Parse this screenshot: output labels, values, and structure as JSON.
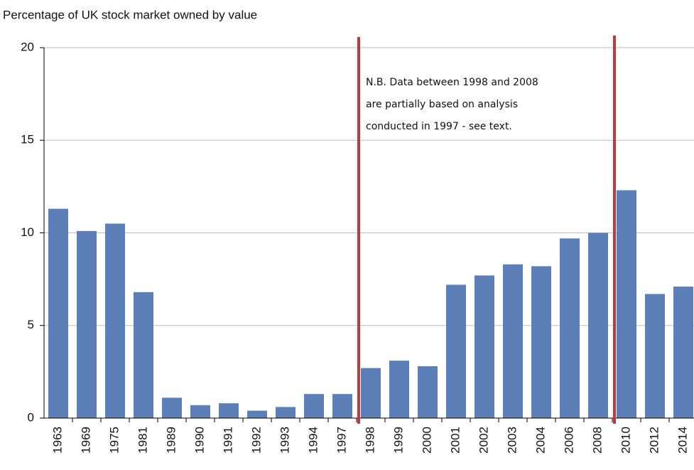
{
  "chart_data": {
    "type": "bar",
    "title": "Percentage of UK stock market owned by value",
    "categories": [
      "1963",
      "1969",
      "1975",
      "1981",
      "1989",
      "1990",
      "1991",
      "1992",
      "1993",
      "1994",
      "1997",
      "1998",
      "1999",
      "2000",
      "2001",
      "2002",
      "2003",
      "2004",
      "2006",
      "2008",
      "2010",
      "2012",
      "2014"
    ],
    "values": [
      11.3,
      10.1,
      10.5,
      6.8,
      1.1,
      0.7,
      0.8,
      0.4,
      0.6,
      1.3,
      1.3,
      2.7,
      3.1,
      2.8,
      7.2,
      7.7,
      8.3,
      8.2,
      9.7,
      10.0,
      12.3,
      6.7,
      7.1
    ],
    "color": "#5b7fb6",
    "ylim": [
      0,
      20
    ],
    "yticks": [
      0,
      5,
      10,
      15,
      20
    ],
    "grid": true,
    "annotation": [
      "N.B. Data between 1998  and 2008",
      "are partially based on analysis",
      "conducted in 1997 - see text."
    ]
  }
}
